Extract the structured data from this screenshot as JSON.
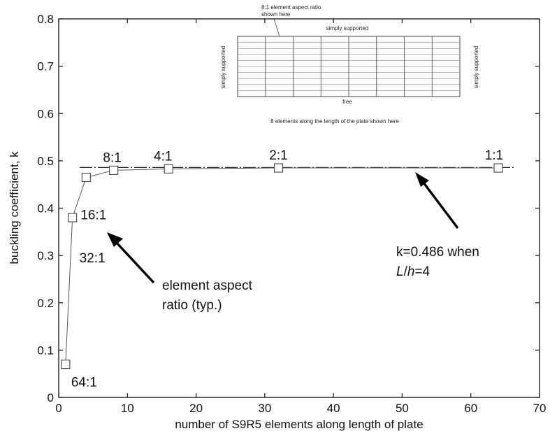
{
  "chart_data": {
    "type": "line",
    "title": "",
    "xlabel": "number of S9R5 elements along length of plate",
    "ylabel": "buckling coefficient, k",
    "xlim": [
      0,
      70
    ],
    "ylim": [
      0,
      0.8
    ],
    "xticks": [
      0,
      10,
      20,
      30,
      40,
      50,
      60,
      70
    ],
    "yticks": [
      0,
      0.1,
      0.2,
      0.3,
      0.4,
      0.5,
      0.6,
      0.7,
      0.8
    ],
    "grid": false,
    "series": [
      {
        "x": [
          1,
          2,
          4,
          8,
          16,
          32,
          64
        ],
        "y": [
          0.07,
          0.38,
          0.465,
          0.48,
          0.483,
          0.485,
          0.485
        ],
        "marker": "square"
      }
    ],
    "reference_line": {
      "y": 0.486,
      "style": "dash-dot"
    },
    "point_labels": [
      {
        "text": "64:1",
        "x": 1
      },
      {
        "text": "32:1",
        "x": 2
      },
      {
        "text": "16:1",
        "x": 4
      },
      {
        "text": "8:1",
        "x": 8
      },
      {
        "text": "4:1",
        "x": 16
      },
      {
        "text": "2:1",
        "x": 32
      },
      {
        "text": "1:1",
        "x": 64
      }
    ],
    "annotations": {
      "aspect": {
        "line1": "element aspect",
        "line2": "ratio (typ.)"
      },
      "k_value": {
        "line1": "k=0.486 when",
        "line2_italic_a": "L",
        "line2_mid": "/",
        "line2_italic_b": "h",
        "line2_tail": "=4"
      }
    },
    "inset": {
      "top_note_line1": "8:1 element aspect ratio",
      "top_note_line2": "shown here",
      "top_edge": "simply supported",
      "left_edge": "simply supported",
      "right_edge": "simply supported",
      "bottom_edge": "free",
      "bottom_note": "8 elements along the length of the plate shown here"
    }
  }
}
